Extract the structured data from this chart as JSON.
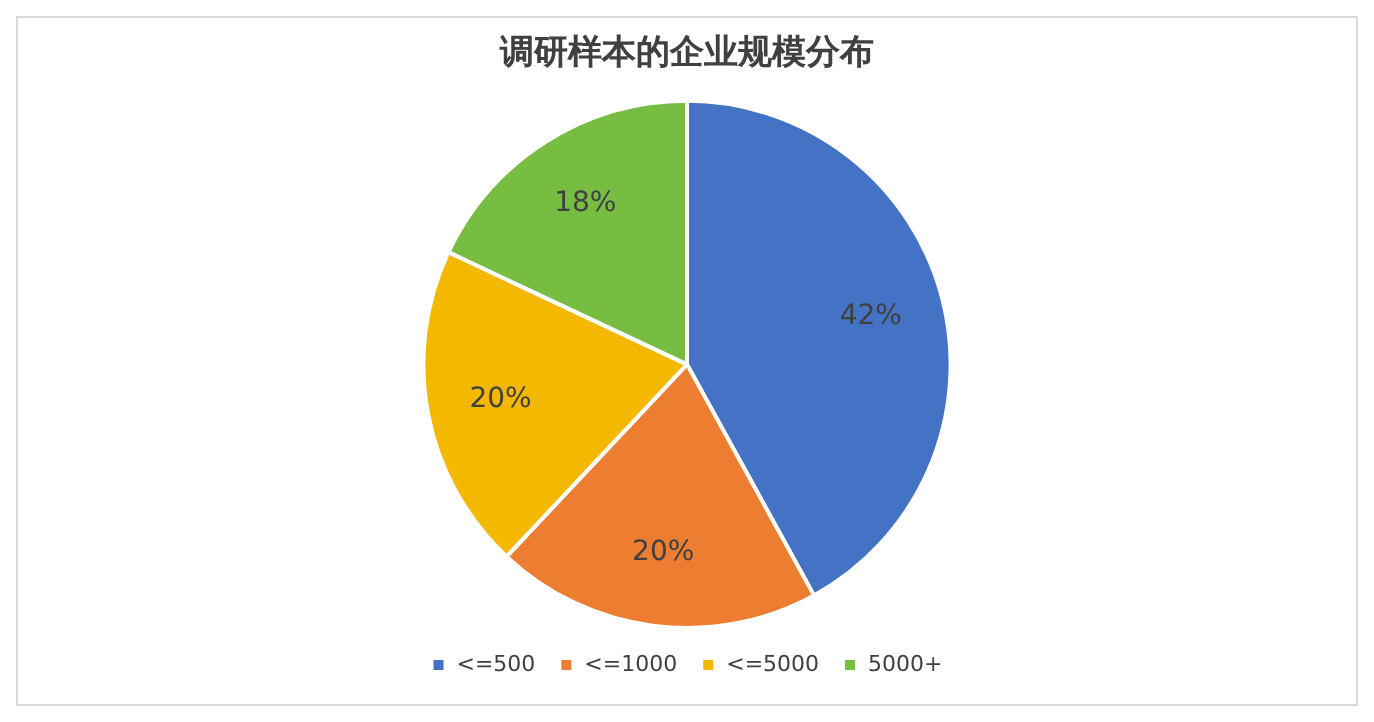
{
  "chart_data": {
    "type": "pie",
    "title": "调研样本的企业规模分布",
    "categories": [
      "<=500",
      "<=1000",
      "<=5000",
      "5000+"
    ],
    "values": [
      42,
      20,
      20,
      18
    ],
    "colors": [
      "#4472c4",
      "#ed7d31",
      "#f5b800",
      "#76bd42"
    ],
    "value_labels": [
      "42%",
      "20%",
      "20%",
      "18%"
    ],
    "legend": "bottom"
  }
}
